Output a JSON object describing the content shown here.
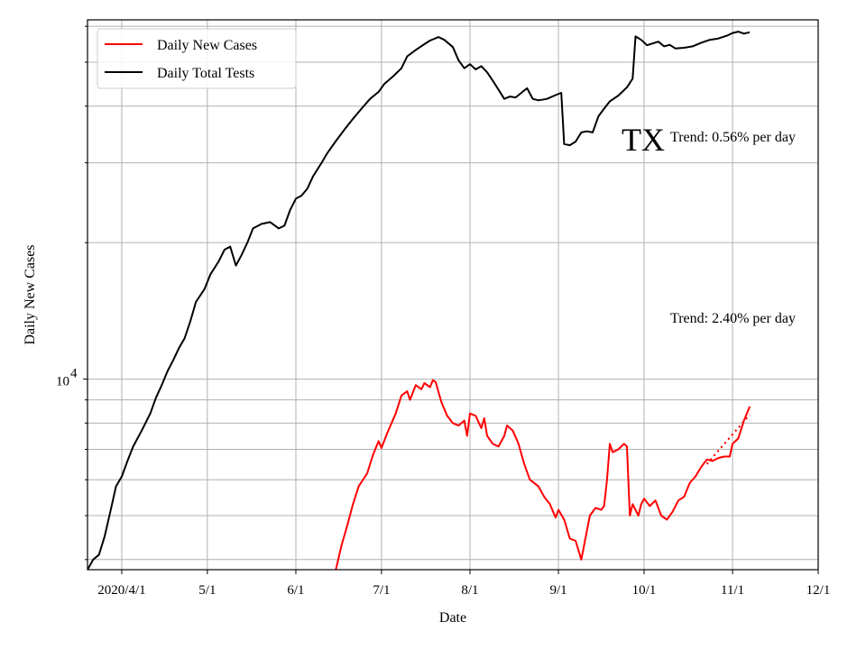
{
  "chart_data": {
    "type": "line",
    "title": "",
    "xlabel": "Date",
    "ylabel": "Daily New Cases",
    "y_scale": "log",
    "ylim": [
      3800,
      62000
    ],
    "xlim": [
      "2020-03-20",
      "2020-12-01"
    ],
    "x_ticks": [
      {
        "date": "2020-04-01",
        "label": "2020/4/1"
      },
      {
        "date": "2020-05-01",
        "label": "5/1"
      },
      {
        "date": "2020-06-01",
        "label": "6/1"
      },
      {
        "date": "2020-07-01",
        "label": "7/1"
      },
      {
        "date": "2020-08-01",
        "label": "8/1"
      },
      {
        "date": "2020-09-01",
        "label": "9/1"
      },
      {
        "date": "2020-10-01",
        "label": "10/1"
      },
      {
        "date": "2020-11-01",
        "label": "11/1"
      },
      {
        "date": "2020-12-01",
        "label": "12/1"
      }
    ],
    "y_major_ticks": [
      {
        "value": 10000,
        "base": "10",
        "exp": "4"
      }
    ],
    "y_minor_ticks": [
      4000,
      5000,
      6000,
      7000,
      8000,
      9000,
      20000,
      30000,
      40000,
      50000,
      60000
    ],
    "grid": true,
    "legend_position": "top-left",
    "series": [
      {
        "name": "Daily New Cases",
        "color": "#ff0000",
        "points": [
          [
            "2020-06-15",
            3800
          ],
          [
            "2020-06-17",
            4300
          ],
          [
            "2020-06-19",
            4750
          ],
          [
            "2020-06-21",
            5300
          ],
          [
            "2020-06-23",
            5800
          ],
          [
            "2020-06-26",
            6200
          ],
          [
            "2020-06-28",
            6800
          ],
          [
            "2020-06-30",
            7300
          ],
          [
            "2020-07-01",
            7050
          ],
          [
            "2020-07-03",
            7600
          ],
          [
            "2020-07-06",
            8400
          ],
          [
            "2020-07-08",
            9200
          ],
          [
            "2020-07-10",
            9400
          ],
          [
            "2020-07-11",
            9000
          ],
          [
            "2020-07-13",
            9700
          ],
          [
            "2020-07-15",
            9500
          ],
          [
            "2020-07-16",
            9800
          ],
          [
            "2020-07-18",
            9600
          ],
          [
            "2020-07-19",
            9950
          ],
          [
            "2020-07-20",
            9850
          ],
          [
            "2020-07-22",
            8900
          ],
          [
            "2020-07-24",
            8300
          ],
          [
            "2020-07-26",
            8000
          ],
          [
            "2020-07-28",
            7900
          ],
          [
            "2020-07-30",
            8100
          ],
          [
            "2020-07-31",
            7500
          ],
          [
            "2020-08-01",
            8400
          ],
          [
            "2020-08-03",
            8300
          ],
          [
            "2020-08-05",
            7800
          ],
          [
            "2020-08-06",
            8200
          ],
          [
            "2020-08-07",
            7500
          ],
          [
            "2020-08-09",
            7200
          ],
          [
            "2020-08-11",
            7100
          ],
          [
            "2020-08-13",
            7500
          ],
          [
            "2020-08-14",
            7900
          ],
          [
            "2020-08-16",
            7700
          ],
          [
            "2020-08-18",
            7200
          ],
          [
            "2020-08-20",
            6500
          ],
          [
            "2020-08-22",
            6000
          ],
          [
            "2020-08-25",
            5800
          ],
          [
            "2020-08-27",
            5500
          ],
          [
            "2020-08-29",
            5300
          ],
          [
            "2020-08-31",
            4950
          ],
          [
            "2020-09-01",
            5150
          ],
          [
            "2020-09-03",
            4900
          ],
          [
            "2020-09-05",
            4450
          ],
          [
            "2020-09-07",
            4400
          ],
          [
            "2020-09-09",
            4000
          ],
          [
            "2020-09-10",
            4300
          ],
          [
            "2020-09-12",
            5000
          ],
          [
            "2020-09-14",
            5200
          ],
          [
            "2020-09-16",
            5150
          ],
          [
            "2020-09-17",
            5250
          ],
          [
            "2020-09-18",
            6000
          ],
          [
            "2020-09-19",
            7200
          ],
          [
            "2020-09-20",
            6900
          ],
          [
            "2020-09-22",
            7000
          ],
          [
            "2020-09-24",
            7200
          ],
          [
            "2020-09-25",
            7100
          ],
          [
            "2020-09-26",
            5000
          ],
          [
            "2020-09-27",
            5300
          ],
          [
            "2020-09-29",
            5000
          ],
          [
            "2020-09-30",
            5300
          ],
          [
            "2020-10-01",
            5450
          ],
          [
            "2020-10-03",
            5250
          ],
          [
            "2020-10-05",
            5400
          ],
          [
            "2020-10-07",
            5000
          ],
          [
            "2020-10-09",
            4900
          ],
          [
            "2020-10-11",
            5100
          ],
          [
            "2020-10-13",
            5400
          ],
          [
            "2020-10-15",
            5500
          ],
          [
            "2020-10-17",
            5900
          ],
          [
            "2020-10-19",
            6100
          ],
          [
            "2020-10-21",
            6400
          ],
          [
            "2020-10-23",
            6650
          ],
          [
            "2020-10-25",
            6600
          ],
          [
            "2020-10-27",
            6700
          ],
          [
            "2020-10-29",
            6750
          ],
          [
            "2020-10-31",
            6750
          ],
          [
            "2020-11-01",
            7200
          ],
          [
            "2020-11-03",
            7400
          ],
          [
            "2020-11-05",
            8100
          ],
          [
            "2020-11-07",
            8700
          ]
        ]
      },
      {
        "name": "Daily Total Tests",
        "color": "#000000",
        "points": [
          [
            "2020-03-20",
            3800
          ],
          [
            "2020-03-22",
            4000
          ],
          [
            "2020-03-24",
            4100
          ],
          [
            "2020-03-26",
            4500
          ],
          [
            "2020-03-28",
            5100
          ],
          [
            "2020-03-30",
            5800
          ],
          [
            "2020-04-01",
            6100
          ],
          [
            "2020-04-03",
            6600
          ],
          [
            "2020-04-05",
            7100
          ],
          [
            "2020-04-08",
            7700
          ],
          [
            "2020-04-11",
            8400
          ],
          [
            "2020-04-13",
            9100
          ],
          [
            "2020-04-15",
            9700
          ],
          [
            "2020-04-17",
            10400
          ],
          [
            "2020-04-19",
            11000
          ],
          [
            "2020-04-21",
            11700
          ],
          [
            "2020-04-23",
            12300
          ],
          [
            "2020-04-25",
            13400
          ],
          [
            "2020-04-27",
            14800
          ],
          [
            "2020-04-30",
            15800
          ],
          [
            "2020-05-02",
            17000
          ],
          [
            "2020-05-05",
            18200
          ],
          [
            "2020-05-07",
            19300
          ],
          [
            "2020-05-09",
            19600
          ],
          [
            "2020-05-11",
            17800
          ],
          [
            "2020-05-13",
            18800
          ],
          [
            "2020-05-15",
            20000
          ],
          [
            "2020-05-17",
            21500
          ],
          [
            "2020-05-20",
            22000
          ],
          [
            "2020-05-23",
            22200
          ],
          [
            "2020-05-26",
            21500
          ],
          [
            "2020-05-28",
            21800
          ],
          [
            "2020-05-30",
            23600
          ],
          [
            "2020-06-01",
            25000
          ],
          [
            "2020-06-03",
            25400
          ],
          [
            "2020-06-05",
            26300
          ],
          [
            "2020-06-07",
            28000
          ],
          [
            "2020-06-10",
            30000
          ],
          [
            "2020-06-12",
            31500
          ],
          [
            "2020-06-15",
            33500
          ],
          [
            "2020-06-18",
            35500
          ],
          [
            "2020-06-21",
            37500
          ],
          [
            "2020-06-24",
            39500
          ],
          [
            "2020-06-27",
            41500
          ],
          [
            "2020-06-30",
            43000
          ],
          [
            "2020-07-02",
            44800
          ],
          [
            "2020-07-05",
            46500
          ],
          [
            "2020-07-08",
            48500
          ],
          [
            "2020-07-10",
            51500
          ],
          [
            "2020-07-13",
            53200
          ],
          [
            "2020-07-16",
            54800
          ],
          [
            "2020-07-18",
            55800
          ],
          [
            "2020-07-21",
            56800
          ],
          [
            "2020-07-23",
            56000
          ],
          [
            "2020-07-26",
            54000
          ],
          [
            "2020-07-28",
            50500
          ],
          [
            "2020-07-30",
            48500
          ],
          [
            "2020-08-01",
            49500
          ],
          [
            "2020-08-03",
            48200
          ],
          [
            "2020-08-05",
            49000
          ],
          [
            "2020-08-07",
            47500
          ],
          [
            "2020-08-09",
            45500
          ],
          [
            "2020-08-11",
            43500
          ],
          [
            "2020-08-13",
            41500
          ],
          [
            "2020-08-15",
            42000
          ],
          [
            "2020-08-17",
            41800
          ],
          [
            "2020-08-19",
            42800
          ],
          [
            "2020-08-21",
            43800
          ],
          [
            "2020-08-23",
            41500
          ],
          [
            "2020-08-25",
            41200
          ],
          [
            "2020-08-28",
            41500
          ],
          [
            "2020-08-31",
            42300
          ],
          [
            "2020-09-02",
            42800
          ],
          [
            "2020-09-03",
            33000
          ],
          [
            "2020-09-05",
            32800
          ],
          [
            "2020-09-07",
            33400
          ],
          [
            "2020-09-09",
            35000
          ],
          [
            "2020-09-11",
            35200
          ],
          [
            "2020-09-13",
            35000
          ],
          [
            "2020-09-15",
            38000
          ],
          [
            "2020-09-17",
            39500
          ],
          [
            "2020-09-19",
            41000
          ],
          [
            "2020-09-22",
            42200
          ],
          [
            "2020-09-25",
            44000
          ],
          [
            "2020-09-27",
            46000
          ],
          [
            "2020-09-28",
            57000
          ],
          [
            "2020-09-30",
            56000
          ],
          [
            "2020-10-02",
            54500
          ],
          [
            "2020-10-04",
            55000
          ],
          [
            "2020-10-06",
            55500
          ],
          [
            "2020-10-08",
            54200
          ],
          [
            "2020-10-10",
            54600
          ],
          [
            "2020-10-12",
            53600
          ],
          [
            "2020-10-15",
            53800
          ],
          [
            "2020-10-18",
            54200
          ],
          [
            "2020-10-21",
            55200
          ],
          [
            "2020-10-24",
            56000
          ],
          [
            "2020-10-27",
            56400
          ],
          [
            "2020-10-30",
            57200
          ],
          [
            "2020-11-01",
            58000
          ],
          [
            "2020-11-03",
            58400
          ],
          [
            "2020-11-05",
            57800
          ],
          [
            "2020-11-07",
            58200
          ]
        ]
      }
    ],
    "trend_lines": [
      {
        "color": "#ff0000",
        "style": "dotted",
        "from": [
          "2020-10-23",
          6500
        ],
        "to": [
          "2020-11-07",
          8350
        ]
      }
    ],
    "annotations": [
      {
        "text": "TX"
      },
      {
        "text": "Trend: 0.56% per day"
      },
      {
        "text": "Trend: 2.40% per day"
      }
    ]
  }
}
